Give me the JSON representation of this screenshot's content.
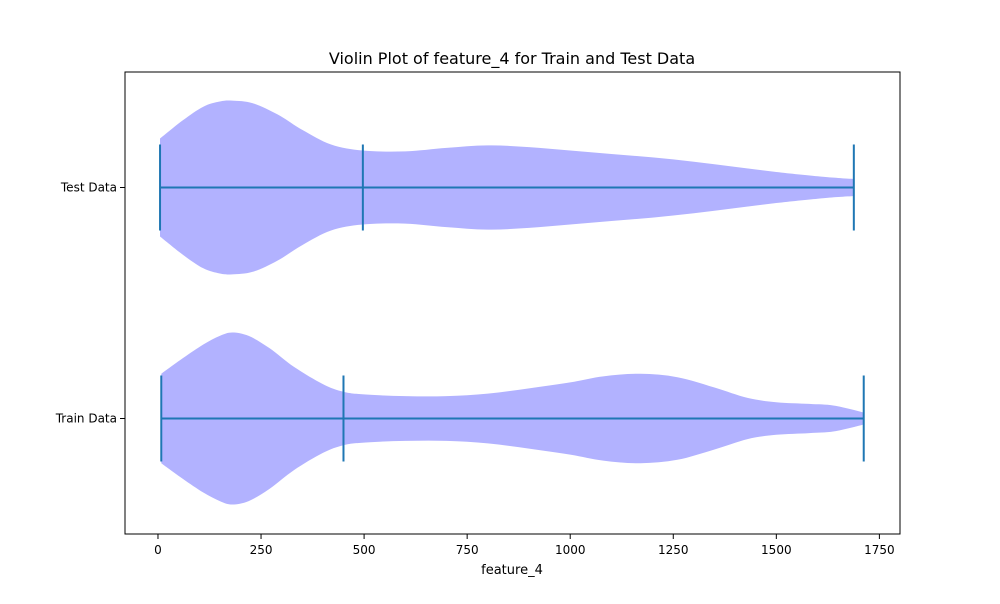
{
  "chart_data": {
    "type": "violin",
    "orientation": "horizontal",
    "title": "Violin Plot of feature_4 for Train and Test Data",
    "xlabel": "feature_4",
    "ylabel": "",
    "xlim": [
      -80,
      1800
    ],
    "xticks": [
      0,
      250,
      500,
      750,
      1000,
      1250,
      1500,
      1750
    ],
    "xtick_labels": [
      "0",
      "250",
      "500",
      "750",
      "1000",
      "1250",
      "1500",
      "1750"
    ],
    "categories": [
      "Train Data",
      "Test Data"
    ],
    "grid": false,
    "fill_color": "#b2b2ff",
    "line_color": "#1f77b4",
    "series": [
      {
        "category": "Train Data",
        "min": 8,
        "median": 450,
        "max": 1712,
        "density": [
          [
            8,
            0.52
          ],
          [
            60,
            0.7
          ],
          [
            110,
            0.86
          ],
          [
            150,
            0.96
          ],
          [
            180,
            1.0
          ],
          [
            220,
            0.96
          ],
          [
            270,
            0.82
          ],
          [
            330,
            0.6
          ],
          [
            400,
            0.4
          ],
          [
            450,
            0.31
          ],
          [
            500,
            0.28
          ],
          [
            600,
            0.26
          ],
          [
            700,
            0.26
          ],
          [
            800,
            0.29
          ],
          [
            900,
            0.35
          ],
          [
            1000,
            0.42
          ],
          [
            1080,
            0.49
          ],
          [
            1170,
            0.52
          ],
          [
            1260,
            0.48
          ],
          [
            1350,
            0.36
          ],
          [
            1430,
            0.24
          ],
          [
            1500,
            0.19
          ],
          [
            1580,
            0.17
          ],
          [
            1640,
            0.15
          ],
          [
            1712,
            0.07
          ]
        ]
      },
      {
        "category": "Test Data",
        "min": 5,
        "median": 497,
        "max": 1688,
        "density": [
          [
            5,
            0.57
          ],
          [
            60,
            0.78
          ],
          [
            110,
            0.94
          ],
          [
            150,
            1.0
          ],
          [
            180,
            1.01
          ],
          [
            230,
            0.98
          ],
          [
            290,
            0.85
          ],
          [
            350,
            0.67
          ],
          [
            420,
            0.5
          ],
          [
            497,
            0.43
          ],
          [
            600,
            0.42
          ],
          [
            700,
            0.46
          ],
          [
            800,
            0.49
          ],
          [
            900,
            0.47
          ],
          [
            1000,
            0.43
          ],
          [
            1100,
            0.39
          ],
          [
            1200,
            0.35
          ],
          [
            1300,
            0.3
          ],
          [
            1400,
            0.24
          ],
          [
            1500,
            0.18
          ],
          [
            1600,
            0.13
          ],
          [
            1650,
            0.11
          ],
          [
            1688,
            0.1
          ]
        ]
      }
    ]
  }
}
